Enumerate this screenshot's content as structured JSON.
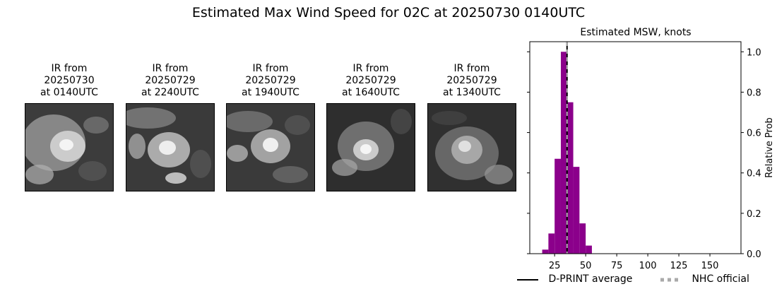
{
  "title": "Estimated Max Wind Speed for 02C at 20250730 0140UTC",
  "panels": [
    {
      "line1": "IR from",
      "line2": "20250730",
      "line3": "at 0140UTC"
    },
    {
      "line1": "IR from",
      "line2": "20250729",
      "line3": "at 2240UTC"
    },
    {
      "line1": "IR from",
      "line2": "20250729",
      "line3": "at 1940UTC"
    },
    {
      "line1": "IR from",
      "line2": "20250729",
      "line3": "at 1640UTC"
    },
    {
      "line1": "IR from",
      "line2": "20250729",
      "line3": "at 1340UTC"
    }
  ],
  "chart_data": {
    "type": "bar",
    "title": "Estimated MSW, knots",
    "xlabel": "",
    "ylabel": "Relative Prob",
    "xlim": [
      5,
      175
    ],
    "ylim": [
      0,
      1.05
    ],
    "xticks": [
      25,
      50,
      75,
      100,
      125,
      150
    ],
    "yticks": [
      0.0,
      0.2,
      0.4,
      0.6,
      0.8,
      1.0
    ],
    "yaxis_side": "right",
    "bar_color": "#8b008b",
    "bins": [
      {
        "x": 17.5,
        "value": 0.02
      },
      {
        "x": 22.5,
        "value": 0.1
      },
      {
        "x": 27.5,
        "value": 0.47
      },
      {
        "x": 32.5,
        "value": 1.0
      },
      {
        "x": 37.5,
        "value": 0.75
      },
      {
        "x": 42.5,
        "value": 0.43
      },
      {
        "x": 47.5,
        "value": 0.15
      },
      {
        "x": 52.5,
        "value": 0.04
      }
    ],
    "bin_width": 5,
    "lines": [
      {
        "name": "D-PRINT average",
        "x": 35,
        "color": "#000000",
        "style": "solid"
      },
      {
        "name": "NHC official",
        "x": 35,
        "color": "#aaaaaa",
        "style": "dashed"
      }
    ],
    "legend_position": "bottom"
  }
}
